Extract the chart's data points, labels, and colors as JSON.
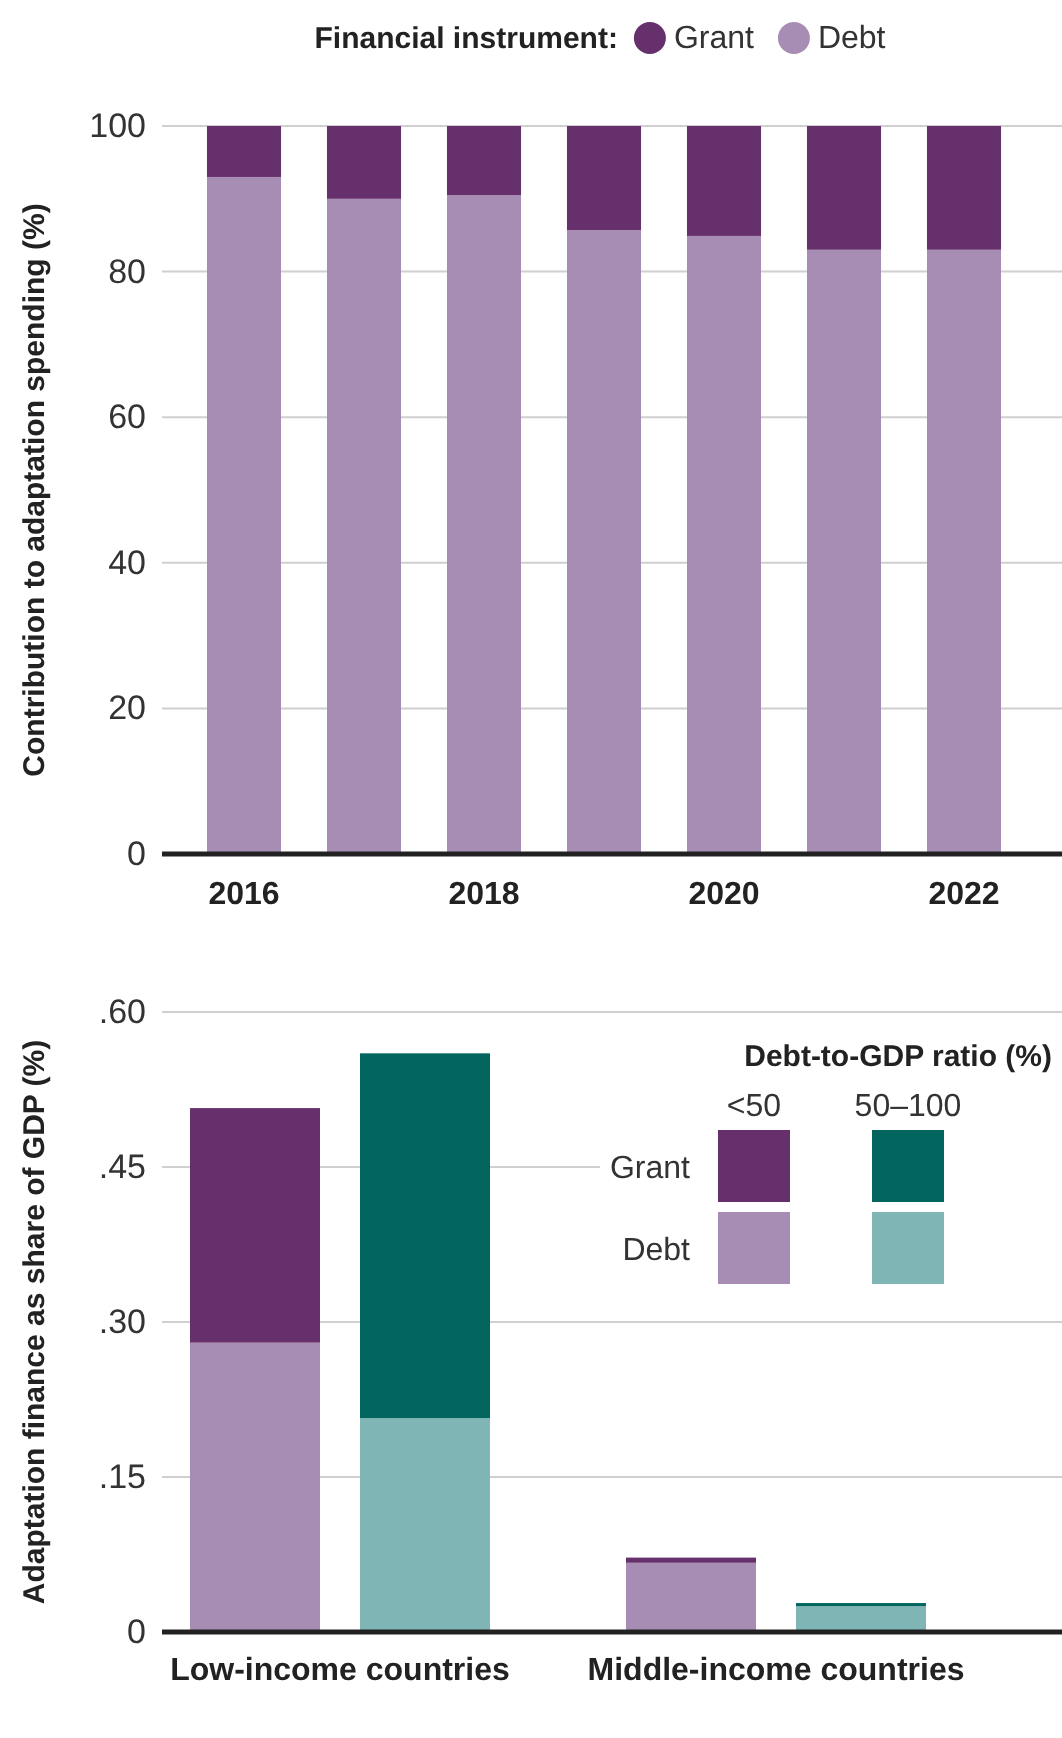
{
  "chart_data": [
    {
      "type": "bar",
      "stacked": true,
      "legend": "top",
      "legend_title": "Financial instrument:",
      "categories": [
        "2016",
        null,
        "2018",
        null,
        "2020",
        null,
        "2022"
      ],
      "ylabel": "Contribution to adaptation spending (%)",
      "ylim": [
        0,
        100
      ],
      "yticks": [
        0,
        20,
        40,
        60,
        80,
        100
      ],
      "grid": "y",
      "series": [
        {
          "name": "Debt",
          "color": "#a78db3",
          "values": [
            93,
            90,
            90.5,
            85.7,
            84.9,
            83,
            83
          ]
        },
        {
          "name": "Grant",
          "color": "#65306b",
          "values": [
            7,
            10,
            9.5,
            14.3,
            15.1,
            17,
            17
          ]
        }
      ]
    },
    {
      "type": "bar",
      "stacked": true,
      "legend": "top right",
      "legend_title": "Debt-to-GDP ratio (%)",
      "categories": [
        null,
        null,
        null,
        null
      ],
      "annotations": [
        "<50",
        "50–100",
        "Low-income countries",
        "Middle-income countries"
      ],
      "ylabel": "Adaptation finance as share of GDP (%)",
      "ylim": [
        0,
        0.6
      ],
      "yticks": [
        0,
        {
          "value": 0.15,
          "label": ".15"
        },
        {
          "value": 0.3,
          "label": ".30"
        },
        {
          "value": 0.45,
          "label": ".45"
        },
        {
          "value": 0.6,
          "label": ".60"
        }
      ],
      "grid": "y",
      "series": [
        {
          "name": "Debt",
          "colors": [
            "#a78db3",
            "#7fb5b5",
            "#a78db3",
            "#7fb5b5"
          ],
          "values": [
            0.28,
            0.207,
            0.067,
            0.025
          ]
        },
        {
          "name": "Grant",
          "colors": [
            "#65306b",
            "#02665f",
            "#65306b",
            "#02665f"
          ],
          "values": [
            0.227,
            0.353,
            0.005,
            0.003
          ]
        }
      ]
    }
  ]
}
